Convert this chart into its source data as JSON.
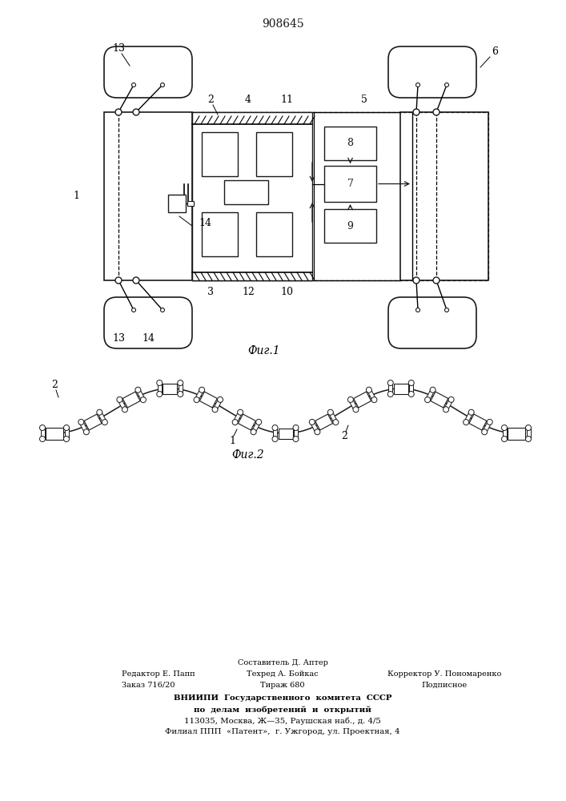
{
  "title": "908645",
  "fig1_caption": "Фиг.1",
  "fig2_caption": "Фиг.2",
  "bg_color": "#ffffff",
  "line_color": "#1a1a1a",
  "footer_editor": "Редактор Е. Папп",
  "footer_order": "Заказ 716/20",
  "footer_compiler": "Составитель Д. Аптер",
  "footer_tech": "Техред А. Бойкас",
  "footer_circ": "Тираж 680",
  "footer_corrector": "Корректор У. Пономаренко",
  "footer_subscr": "Подписное",
  "footer_vniipi": "ВНИИПИ  Государственного  комитета  СССР",
  "footer_affairs": "по  делам  изобретений  и  открытий",
  "footer_addr1": "113035, Москва, Ж—35, Раушская наб., д. 4/5",
  "footer_addr2": "Филиал ППП  «Патент»,  г. Ужгород, ул. Проектная, 4"
}
